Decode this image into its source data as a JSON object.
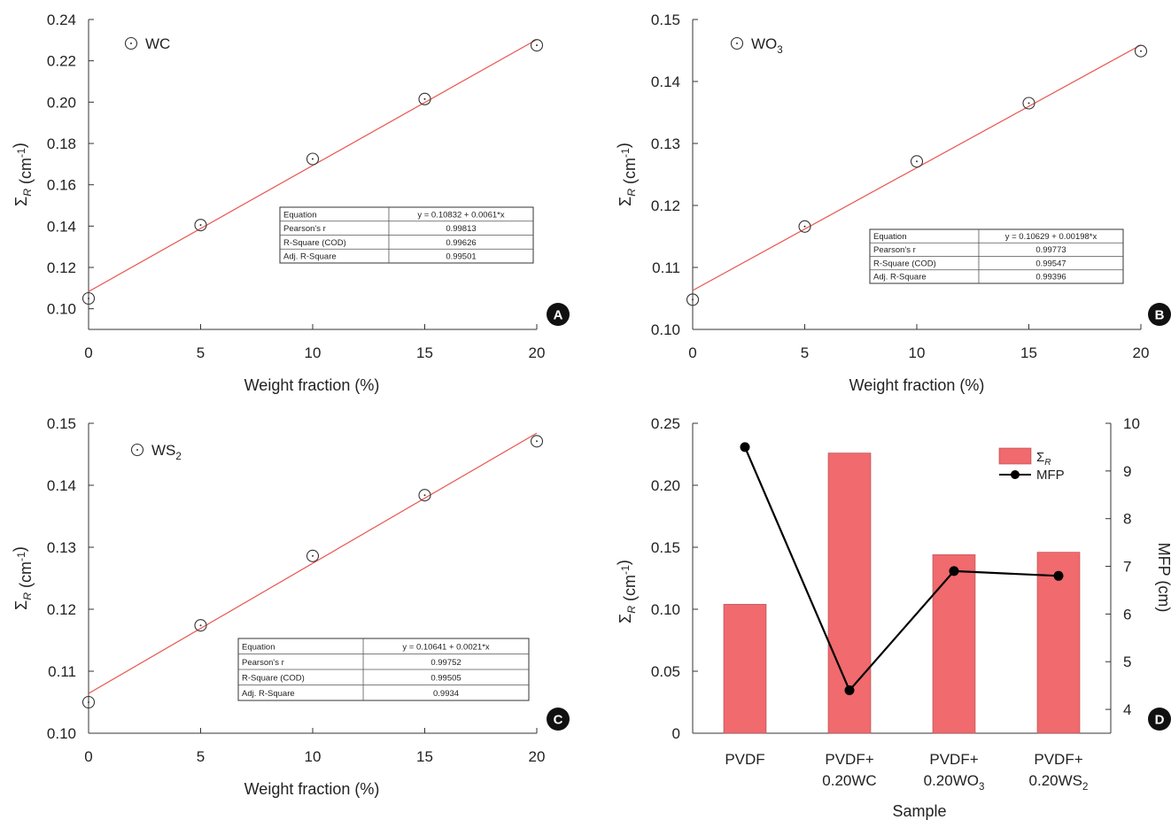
{
  "colors": {
    "fit_line": "#e8544f",
    "bar_fill": "#f06a6e",
    "bar_stroke": "#b04848",
    "mfp_line": "#000000",
    "axis": "#333333",
    "badge": "#111111"
  },
  "chart_data": [
    {
      "id": "A",
      "type": "scatter",
      "xlabel": "Weight fraction (%)",
      "ylabel": "Σ_R (cm⁻¹)",
      "xlim": [
        0,
        20
      ],
      "ylim": [
        0.09,
        0.24
      ],
      "xticks": [
        "0",
        "5",
        "10",
        "15",
        "20"
      ],
      "yticks": [
        "0.10",
        "0.12",
        "0.14",
        "0.16",
        "0.18",
        "0.20",
        "0.22",
        "0.24"
      ],
      "series": [
        {
          "name": "WC",
          "x": [
            0,
            5,
            10,
            15,
            20
          ],
          "y": [
            0.105,
            0.1405,
            0.1725,
            0.2015,
            0.2275
          ]
        }
      ],
      "fit": {
        "intercept": 0.10832,
        "slope": 0.0061
      },
      "fit_table": [
        [
          "Equation",
          "y = 0.10832 + 0.0061*x"
        ],
        [
          "Pearson's r",
          "0.99813"
        ],
        [
          "R-Square (COD)",
          "0.99626"
        ],
        [
          "Adj. R-Square",
          "0.99501"
        ]
      ],
      "panel_label": "A",
      "legend_position": "top-left",
      "grid": false
    },
    {
      "id": "B",
      "type": "scatter",
      "xlabel": "Weight fraction (%)",
      "ylabel": "Σ_R (cm⁻¹)",
      "xlim": [
        0,
        20
      ],
      "ylim": [
        0.1,
        0.15
      ],
      "xticks": [
        "0",
        "5",
        "10",
        "15",
        "20"
      ],
      "yticks": [
        "0.10",
        "0.11",
        "0.12",
        "0.13",
        "0.14",
        "0.15"
      ],
      "series": [
        {
          "name": "WO₃",
          "x": [
            0,
            5,
            10,
            15,
            20
          ],
          "y": [
            0.1048,
            0.1166,
            0.1271,
            0.1365,
            0.1449
          ]
        }
      ],
      "fit": {
        "intercept": 0.10629,
        "slope": 0.00198
      },
      "fit_table": [
        [
          "Equation",
          "y = 0.10629 + 0.00198*x"
        ],
        [
          "Pearson's r",
          "0.99773"
        ],
        [
          "R-Square (COD)",
          "0.99547"
        ],
        [
          "Adj. R-Square",
          "0.99396"
        ]
      ],
      "panel_label": "B",
      "legend_position": "top-left",
      "grid": false
    },
    {
      "id": "C",
      "type": "scatter",
      "xlabel": "Weight fraction (%)",
      "ylabel": "Σ_R (cm⁻¹)",
      "xlim": [
        0,
        20
      ],
      "ylim": [
        0.1,
        0.15
      ],
      "xticks": [
        "0",
        "5",
        "10",
        "15",
        "20"
      ],
      "yticks": [
        "0.10",
        "0.11",
        "0.12",
        "0.13",
        "0.14",
        "0.15"
      ],
      "series": [
        {
          "name": "WS₂",
          "x": [
            0,
            5,
            10,
            15,
            20
          ],
          "y": [
            0.105,
            0.1174,
            0.1286,
            0.1384,
            0.1471
          ]
        }
      ],
      "fit": {
        "intercept": 0.10641,
        "slope": 0.0021
      },
      "fit_table": [
        [
          "Equation",
          "y = 0.10641 + 0.0021*x"
        ],
        [
          "Pearson's r",
          "0.99752"
        ],
        [
          "R-Square (COD)",
          "0.99505"
        ],
        [
          "Adj. R-Square",
          "0.9934"
        ]
      ],
      "panel_label": "C",
      "legend_position": "top-left",
      "grid": false
    },
    {
      "id": "D",
      "type": "bar",
      "xlabel": "Sample",
      "ylabel": "Σ_R (cm⁻¹)",
      "y2label": "MFP (cm)",
      "categories": [
        [
          "PVDF"
        ],
        [
          "PVDF+",
          "0.20WC"
        ],
        [
          "PVDF+",
          "0.20WO₃"
        ],
        [
          "PVDF+",
          "0.20WS₂"
        ]
      ],
      "ylim": [
        0,
        0.25
      ],
      "yticks": [
        "0",
        "0.05",
        "0.10",
        "0.15",
        "0.20",
        "0.25"
      ],
      "y2lim": [
        3.5,
        10
      ],
      "y2ticks": [
        "4",
        "5",
        "6",
        "7",
        "8",
        "9",
        "10"
      ],
      "series": [
        {
          "name": "Σ_R",
          "kind": "bar",
          "axis": "left",
          "values": [
            0.104,
            0.226,
            0.144,
            0.146
          ]
        },
        {
          "name": "MFP",
          "kind": "line",
          "axis": "right",
          "values": [
            9.5,
            4.4,
            6.9,
            6.8
          ]
        }
      ],
      "panel_label": "D",
      "legend_position": "top-right",
      "grid": false
    }
  ]
}
